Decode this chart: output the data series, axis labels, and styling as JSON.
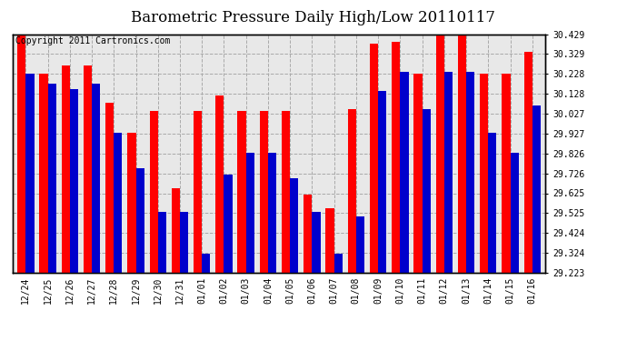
{
  "title": "Barometric Pressure Daily High/Low 20110117",
  "copyright": "Copyright 2011 Cartronics.com",
  "categories": [
    "12/24",
    "12/25",
    "12/26",
    "12/27",
    "12/28",
    "12/29",
    "12/30",
    "12/31",
    "01/01",
    "01/02",
    "01/03",
    "01/04",
    "01/05",
    "01/06",
    "01/07",
    "01/08",
    "01/09",
    "01/10",
    "01/11",
    "01/12",
    "01/13",
    "01/14",
    "01/15",
    "01/16"
  ],
  "highs": [
    30.42,
    30.23,
    30.27,
    30.27,
    30.08,
    29.93,
    30.04,
    29.65,
    30.04,
    30.12,
    30.04,
    30.04,
    30.04,
    29.62,
    29.55,
    30.05,
    30.38,
    30.39,
    30.23,
    30.42,
    30.44,
    30.23,
    30.23,
    30.34
  ],
  "lows": [
    30.23,
    30.18,
    30.15,
    30.18,
    29.93,
    29.75,
    29.53,
    29.53,
    29.32,
    29.72,
    29.83,
    29.83,
    29.7,
    29.53,
    29.32,
    29.51,
    30.14,
    30.24,
    30.05,
    30.24,
    30.24,
    29.93,
    29.83,
    30.07
  ],
  "high_color": "#ff0000",
  "low_color": "#0000cc",
  "ylim_min": 29.223,
  "ylim_max": 30.429,
  "yticks": [
    29.223,
    29.324,
    29.424,
    29.525,
    29.625,
    29.726,
    29.826,
    29.927,
    30.027,
    30.128,
    30.228,
    30.329,
    30.429
  ],
  "bg_color": "#ffffff",
  "plot_bg_color": "#e8e8e8",
  "grid_color": "#aaaaaa",
  "bar_width": 0.38,
  "title_fontsize": 12,
  "copyright_fontsize": 7
}
